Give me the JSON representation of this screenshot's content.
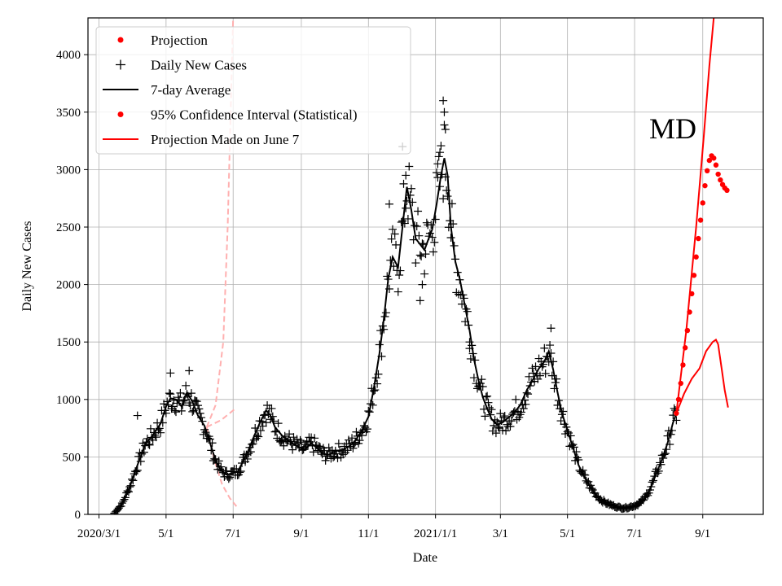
{
  "chart_data": {
    "type": "line",
    "title": "",
    "annotation": "MD",
    "xlabel": "Date",
    "ylabel": "Daily New Cases",
    "xlim": [
      "2020-02-20",
      "2021-10-26"
    ],
    "ylim": [
      0,
      4320
    ],
    "grid": true,
    "legend_location": "top-left",
    "x_ticks": [
      {
        "date": "2020-03-01",
        "label": "2020/3/1"
      },
      {
        "date": "2020-05-01",
        "label": "5/1"
      },
      {
        "date": "2020-07-01",
        "label": "7/1"
      },
      {
        "date": "2020-09-01",
        "label": "9/1"
      },
      {
        "date": "2020-11-01",
        "label": "11/1"
      },
      {
        "date": "2021-01-01",
        "label": "2021/1/1"
      },
      {
        "date": "2021-03-01",
        "label": "3/1"
      },
      {
        "date": "2021-05-01",
        "label": "5/1"
      },
      {
        "date": "2021-07-01",
        "label": "7/1"
      },
      {
        "date": "2021-09-01",
        "label": "9/1"
      }
    ],
    "y_ticks": [
      0,
      500,
      1000,
      1500,
      2000,
      2500,
      3000,
      3500,
      4000
    ],
    "legend": [
      {
        "label": "Projection",
        "marker": "dot",
        "color": "#ff0000"
      },
      {
        "label": "Daily New Cases",
        "marker": "plus",
        "color": "#000000"
      },
      {
        "label": "7-day Average",
        "marker": "line",
        "color": "#000000"
      },
      {
        "label": "95% Confidence Interval (Statistical)",
        "marker": "dot",
        "color": "#ff0000"
      },
      {
        "label": "Projection Made on June 7",
        "marker": "line",
        "color": "#ff0000"
      }
    ],
    "series": [
      {
        "name": "7-day Average",
        "style": "line",
        "color": "#000000",
        "points": [
          [
            "2020-03-15",
            10
          ],
          [
            "2020-03-22",
            90
          ],
          [
            "2020-03-29",
            240
          ],
          [
            "2020-04-05",
            430
          ],
          [
            "2020-04-12",
            610
          ],
          [
            "2020-04-19",
            690
          ],
          [
            "2020-04-26",
            790
          ],
          [
            "2020-05-01",
            940
          ],
          [
            "2020-05-05",
            1010
          ],
          [
            "2020-05-10",
            1000
          ],
          [
            "2020-05-15",
            940
          ],
          [
            "2020-05-20",
            1060
          ],
          [
            "2020-05-25",
            980
          ],
          [
            "2020-05-30",
            860
          ],
          [
            "2020-06-05",
            770
          ],
          [
            "2020-06-10",
            620
          ],
          [
            "2020-06-15",
            470
          ],
          [
            "2020-06-20",
            380
          ],
          [
            "2020-06-25",
            345
          ],
          [
            "2020-07-01",
            360
          ],
          [
            "2020-07-05",
            370
          ],
          [
            "2020-07-10",
            460
          ],
          [
            "2020-07-15",
            560
          ],
          [
            "2020-07-20",
            680
          ],
          [
            "2020-07-25",
            790
          ],
          [
            "2020-07-31",
            905
          ],
          [
            "2020-08-04",
            860
          ],
          [
            "2020-08-08",
            760
          ],
          [
            "2020-08-15",
            680
          ],
          [
            "2020-08-22",
            630
          ],
          [
            "2020-08-29",
            590
          ],
          [
            "2020-09-04",
            560
          ],
          [
            "2020-09-10",
            620
          ],
          [
            "2020-09-15",
            580
          ],
          [
            "2020-09-20",
            530
          ],
          [
            "2020-09-26",
            520
          ],
          [
            "2020-10-02",
            550
          ],
          [
            "2020-10-08",
            560
          ],
          [
            "2020-10-14",
            590
          ],
          [
            "2020-10-20",
            640
          ],
          [
            "2020-10-26",
            730
          ],
          [
            "2020-11-01",
            850
          ],
          [
            "2020-11-06",
            1100
          ],
          [
            "2020-11-11",
            1400
          ],
          [
            "2020-11-15",
            1700
          ],
          [
            "2020-11-19",
            2050
          ],
          [
            "2020-11-23",
            2240
          ],
          [
            "2020-11-28",
            2150
          ],
          [
            "2020-12-02",
            2500
          ],
          [
            "2020-12-06",
            2850
          ],
          [
            "2020-12-10",
            2650
          ],
          [
            "2020-12-14",
            2400
          ],
          [
            "2020-12-18",
            2350
          ],
          [
            "2020-12-22",
            2300
          ],
          [
            "2020-12-25",
            2380
          ],
          [
            "2020-12-29",
            2480
          ],
          [
            "2021-01-02",
            2700
          ],
          [
            "2021-01-06",
            2950
          ],
          [
            "2021-01-09",
            3100
          ],
          [
            "2021-01-12",
            2950
          ],
          [
            "2021-01-15",
            2500
          ],
          [
            "2021-01-19",
            2200
          ],
          [
            "2021-01-23",
            2050
          ],
          [
            "2021-01-27",
            1850
          ],
          [
            "2021-02-01",
            1600
          ],
          [
            "2021-02-05",
            1350
          ],
          [
            "2021-02-09",
            1170
          ],
          [
            "2021-02-13",
            1020
          ],
          [
            "2021-02-17",
            920
          ],
          [
            "2021-02-21",
            830
          ],
          [
            "2021-02-26",
            780
          ],
          [
            "2021-03-03",
            800
          ],
          [
            "2021-03-08",
            840
          ],
          [
            "2021-03-13",
            880
          ],
          [
            "2021-03-19",
            950
          ],
          [
            "2021-03-25",
            1080
          ],
          [
            "2021-03-31",
            1180
          ],
          [
            "2021-04-05",
            1270
          ],
          [
            "2021-04-10",
            1330
          ],
          [
            "2021-04-14",
            1420
          ],
          [
            "2021-04-18",
            1260
          ],
          [
            "2021-04-22",
            1060
          ],
          [
            "2021-04-26",
            880
          ],
          [
            "2021-05-01",
            730
          ],
          [
            "2021-05-06",
            580
          ],
          [
            "2021-05-11",
            430
          ],
          [
            "2021-05-16",
            330
          ],
          [
            "2021-05-21",
            250
          ],
          [
            "2021-05-26",
            180
          ],
          [
            "2021-05-31",
            130
          ],
          [
            "2021-06-05",
            100
          ],
          [
            "2021-06-10",
            80
          ],
          [
            "2021-06-15",
            65
          ],
          [
            "2021-06-20",
            55
          ],
          [
            "2021-06-25",
            60
          ],
          [
            "2021-07-01",
            75
          ],
          [
            "2021-07-06",
            100
          ],
          [
            "2021-07-11",
            150
          ],
          [
            "2021-07-16",
            240
          ],
          [
            "2021-07-21",
            360
          ],
          [
            "2021-07-26",
            480
          ],
          [
            "2021-07-31",
            620
          ],
          [
            "2021-08-05",
            800
          ],
          [
            "2021-08-08",
            880
          ]
        ]
      },
      {
        "name": "Daily New Cases",
        "style": "plus",
        "color": "#000000",
        "note": "daily points scattered around the 7-day average; spread approx. +/- 12%",
        "outliers": [
          [
            "2020-12-02",
            3200
          ],
          [
            "2020-12-05",
            2950
          ],
          [
            "2021-01-08",
            3600
          ],
          [
            "2021-01-09",
            3500
          ],
          [
            "2021-01-10",
            3350
          ],
          [
            "2021-01-05",
            3150
          ],
          [
            "2021-01-03",
            3050
          ],
          [
            "2020-11-20",
            2700
          ],
          [
            "2020-12-18",
            1860
          ],
          [
            "2020-12-20",
            2000
          ],
          [
            "2020-05-05",
            1230
          ],
          [
            "2020-05-22",
            1250
          ],
          [
            "2020-04-05",
            860
          ],
          [
            "2021-04-16",
            1620
          ],
          [
            "2021-02-01",
            1500
          ]
        ]
      },
      {
        "name": "Projection",
        "style": "dot",
        "color": "#ff0000",
        "points": [
          [
            "2021-08-08",
            880
          ],
          [
            "2021-08-10",
            1000
          ],
          [
            "2021-08-12",
            1140
          ],
          [
            "2021-08-14",
            1300
          ],
          [
            "2021-08-16",
            1450
          ],
          [
            "2021-08-18",
            1600
          ],
          [
            "2021-08-20",
            1760
          ],
          [
            "2021-08-22",
            1920
          ],
          [
            "2021-08-24",
            2080
          ],
          [
            "2021-08-26",
            2240
          ],
          [
            "2021-08-28",
            2400
          ],
          [
            "2021-08-30",
            2560
          ],
          [
            "2021-09-01",
            2710
          ],
          [
            "2021-09-03",
            2860
          ],
          [
            "2021-09-05",
            2990
          ],
          [
            "2021-09-07",
            3080
          ],
          [
            "2021-09-09",
            3120
          ],
          [
            "2021-09-11",
            3100
          ],
          [
            "2021-09-13",
            3040
          ],
          [
            "2021-09-15",
            2960
          ],
          [
            "2021-09-17",
            2910
          ],
          [
            "2021-09-19",
            2870
          ],
          [
            "2021-09-21",
            2840
          ],
          [
            "2021-09-23",
            2820
          ]
        ]
      },
      {
        "name": "Projection Made on June 7",
        "style": "line",
        "color": "#ff0000",
        "points": [
          [
            "2021-08-08",
            880
          ],
          [
            "2021-08-17",
            1600
          ],
          [
            "2021-08-26",
            2500
          ],
          [
            "2021-09-02",
            3300
          ],
          [
            "2021-09-07",
            3900
          ],
          [
            "2021-09-11",
            4320
          ]
        ]
      },
      {
        "name": "95% Confidence Interval (Statistical)",
        "style": "line",
        "color": "#ff0000",
        "points": [
          [
            "2021-08-08",
            880
          ],
          [
            "2021-08-15",
            1050
          ],
          [
            "2021-08-22",
            1180
          ],
          [
            "2021-08-29",
            1270
          ],
          [
            "2021-09-04",
            1420
          ],
          [
            "2021-09-10",
            1500
          ],
          [
            "2021-09-13",
            1520
          ],
          [
            "2021-09-15",
            1480
          ],
          [
            "2021-09-18",
            1280
          ],
          [
            "2021-09-21",
            1080
          ],
          [
            "2021-09-24",
            930
          ]
        ]
      },
      {
        "name": "",
        "style": "dashed",
        "color": "#ffb0b0",
        "points": [
          [
            "2020-06-07",
            760
          ],
          [
            "2020-06-20",
            820
          ],
          [
            "2020-07-03",
            920
          ]
        ]
      },
      {
        "name": "",
        "style": "dashed",
        "color": "#ffb0b0",
        "points": [
          [
            "2020-06-07",
            760
          ],
          [
            "2020-06-15",
            950
          ],
          [
            "2020-06-22",
            1500
          ],
          [
            "2020-06-26",
            2500
          ],
          [
            "2020-06-29",
            3600
          ],
          [
            "2020-07-01",
            4320
          ]
        ]
      },
      {
        "name": "",
        "style": "dashed",
        "color": "#ffb0b0",
        "points": [
          [
            "2020-06-07",
            760
          ],
          [
            "2020-06-14",
            470
          ],
          [
            "2020-06-21",
            260
          ],
          [
            "2020-06-28",
            140
          ],
          [
            "2020-07-04",
            70
          ]
        ]
      }
    ]
  }
}
